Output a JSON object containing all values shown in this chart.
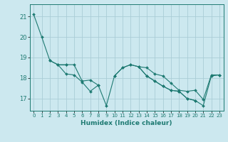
{
  "xlabel": "Humidex (Indice chaleur)",
  "xlim": [
    -0.5,
    23.5
  ],
  "ylim": [
    16.4,
    21.6
  ],
  "yticks": [
    17,
    18,
    19,
    20,
    21
  ],
  "xticks": [
    0,
    1,
    2,
    3,
    4,
    5,
    6,
    7,
    8,
    9,
    10,
    11,
    12,
    13,
    14,
    15,
    16,
    17,
    18,
    19,
    20,
    21,
    22,
    23
  ],
  "bg_color": "#cce8ef",
  "grid_color": "#aacdd6",
  "line_color": "#1e7a72",
  "lines": [
    [
      21.1,
      20.0,
      18.85,
      18.65,
      18.2,
      18.15,
      17.8,
      17.35,
      17.65,
      16.65,
      18.1,
      18.5,
      18.65,
      18.55,
      18.1,
      17.85,
      17.6,
      17.4,
      17.35,
      17.0,
      16.9,
      16.65,
      18.1,
      18.15
    ],
    [
      null,
      null,
      18.85,
      18.65,
      18.65,
      18.65,
      17.85,
      17.9,
      17.65,
      null,
      null,
      null,
      null,
      null,
      null,
      null,
      null,
      null,
      null,
      null,
      null,
      null,
      null,
      null
    ],
    [
      null,
      null,
      null,
      18.65,
      18.65,
      null,
      null,
      null,
      null,
      null,
      18.1,
      18.5,
      18.65,
      18.55,
      18.1,
      17.85,
      17.6,
      17.4,
      17.35,
      17.0,
      16.9,
      null,
      null,
      null
    ],
    [
      null,
      null,
      null,
      null,
      null,
      null,
      null,
      null,
      null,
      null,
      null,
      null,
      null,
      18.55,
      18.5,
      18.2,
      18.1,
      17.75,
      17.4,
      17.35,
      17.4,
      16.95,
      18.15,
      18.15
    ]
  ]
}
